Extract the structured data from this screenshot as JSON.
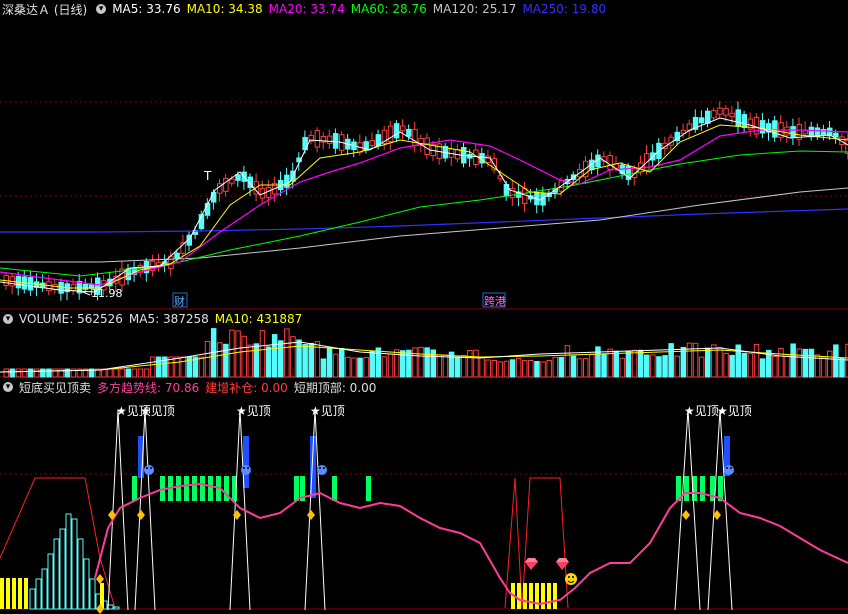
{
  "main": {
    "title": "深桑达Ａ (日线)",
    "ma": [
      {
        "label": "MA5: 33.76",
        "color": "#ffffff"
      },
      {
        "label": "MA10: 34.38",
        "color": "#ffff00"
      },
      {
        "label": "MA20: 33.74",
        "color": "#ff00ff"
      },
      {
        "label": "MA60: 28.76",
        "color": "#00ff00"
      },
      {
        "label": "MA120: 25.17",
        "color": "#c8c8c8"
      },
      {
        "label": "MA250: 19.80",
        "color": "#3030ff"
      }
    ],
    "low_label": "11.98",
    "marker_cai": "财",
    "marker_kuagang": "跨港",
    "t_marker": "T"
  },
  "volume": {
    "label_volume": "VOLUME: 562526",
    "label_ma5": "MA5: 387258",
    "label_ma10": "MA10: 431887"
  },
  "indicator": {
    "name": "短底买见顶卖",
    "trend_label": "多方趋势线: 70.86",
    "build_label": "建增补仓: 0.00",
    "top_label": "短期顶部: 0.00",
    "top_signal": "★见顶"
  },
  "colors": {
    "up": "#ff3c3c",
    "down": "#54fcfc",
    "bg": "#000000",
    "grid": "#8b0000"
  }
}
